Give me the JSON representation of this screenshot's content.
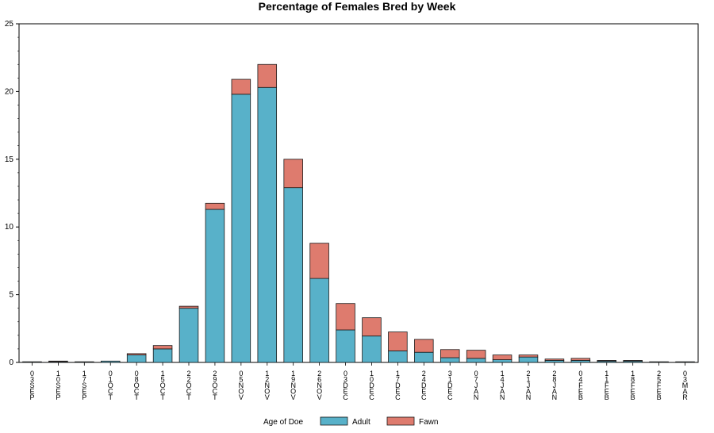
{
  "chart_data": {
    "type": "bar",
    "stacked": true,
    "title": "Percentage of Females Bred by Week",
    "xlabel": "",
    "ylabel": "",
    "ylim": [
      0,
      25
    ],
    "yticks": [
      0,
      5,
      10,
      15,
      20,
      25
    ],
    "grid": false,
    "legend": {
      "title": "Age of Doe",
      "placement": "bottom",
      "entries": [
        "Adult",
        "Fawn"
      ]
    },
    "categories": [
      "03SEP",
      "10SEP",
      "17SEP",
      "01OCT",
      "08OCT",
      "15OCT",
      "22OCT",
      "29OCT",
      "05NOV",
      "12NOV",
      "19NOV",
      "26NOV",
      "03DEC",
      "10DEC",
      "17DEC",
      "24DEC",
      "31DEC",
      "07JAN",
      "14JAN",
      "21JAN",
      "28JAN",
      "04FEB",
      "11FEB",
      "18FEB",
      "25FEB",
      "03MAR"
    ],
    "series": [
      {
        "name": "Adult",
        "color": "#58b1c9",
        "values": [
          0.05,
          0.05,
          0.05,
          0.1,
          0.55,
          1.0,
          4.0,
          11.3,
          19.8,
          20.3,
          12.9,
          6.2,
          2.4,
          1.95,
          0.85,
          0.75,
          0.35,
          0.3,
          0.2,
          0.4,
          0.15,
          0.15,
          0.1,
          0.1,
          0.05,
          0.05
        ]
      },
      {
        "name": "Fawn",
        "color": "#de7b6e",
        "values": [
          0.0,
          0.05,
          0.0,
          0.0,
          0.1,
          0.25,
          0.15,
          0.45,
          1.1,
          1.7,
          2.1,
          2.6,
          1.95,
          1.35,
          1.4,
          0.95,
          0.6,
          0.6,
          0.35,
          0.15,
          0.1,
          0.15,
          0.05,
          0.05,
          0.0,
          0.0
        ]
      }
    ]
  }
}
